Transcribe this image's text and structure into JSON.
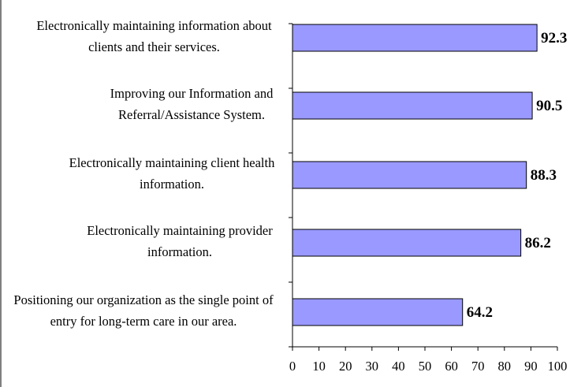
{
  "chart_data": {
    "type": "bar",
    "orientation": "horizontal",
    "categories": [
      "Electronically maintaining information about clients and their services.",
      "Improving our Information and Referral/Assistance System.",
      "Electronically maintaining client health information.",
      "Electronically maintaining provider information.",
      "Positioning our organization as the single point of entry for long-term care in our area."
    ],
    "values": [
      92.3,
      90.5,
      88.3,
      86.2,
      64.2
    ],
    "color": "#9999ff",
    "xlim": [
      0,
      100
    ],
    "xticks": [
      0,
      10,
      20,
      30,
      40,
      50,
      60,
      70,
      80,
      90,
      100
    ]
  }
}
